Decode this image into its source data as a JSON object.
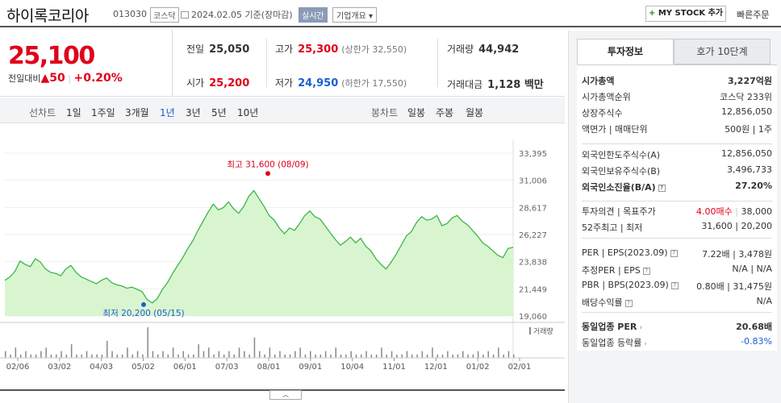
{
  "header": {
    "company": "하이록코리아",
    "code": "013030",
    "market": "코스닥",
    "date": "2024.02.05",
    "basis": "기준(장마감)",
    "realtime": "실시간",
    "overview": "기업개요",
    "mystock": "MY STOCK 추가",
    "fast_order": "빠른주문"
  },
  "quote": {
    "price": "25,100",
    "change_label": "전일대비",
    "change_value": "50",
    "change_pct": "+0.20%",
    "prev_label": "전일",
    "prev": "25,050",
    "high_label": "고가",
    "high": "25,300",
    "upper": "(상한가 32,550)",
    "volume_label": "거래량",
    "volume": "44,942",
    "open_label": "시가",
    "open": "25,200",
    "low_label": "저가",
    "low": "24,950",
    "lower": "(하한가 17,550)",
    "amount_label": "거래대금",
    "amount": "1,128 백만"
  },
  "tabs": {
    "line_label": "선차트",
    "periods": [
      "1일",
      "1주일",
      "3개월",
      "1년",
      "3년",
      "5년",
      "10년"
    ],
    "selected": "1년",
    "candle_label": "봉차트",
    "candles": [
      "일봉",
      "주봉",
      "월봉"
    ]
  },
  "chart_data": {
    "type": "area",
    "y_ticks": [
      "33,395",
      "31,006",
      "28,617",
      "26,227",
      "23,838",
      "21,449",
      "19,060"
    ],
    "ylim": [
      19060,
      33395
    ],
    "x_ticks": [
      "02/06",
      "03/02",
      "04/03",
      "05/02",
      "06/01",
      "07/03",
      "08/01",
      "09/01",
      "10/04",
      "11/01",
      "12/01",
      "01/02",
      "02/01"
    ],
    "high_label": "최고 31,600 (08/09)",
    "low_label": "최저 20,200 (05/15)",
    "high_value": 31600,
    "low_value": 20200,
    "volume_label": "거래량",
    "line_color": "#3bb54a",
    "fill_color": "#d9f5d0",
    "values": [
      22200,
      22500,
      23000,
      23900,
      23600,
      23400,
      24100,
      23800,
      23200,
      22900,
      22800,
      22600,
      23200,
      23500,
      22900,
      22500,
      22300,
      22100,
      21900,
      22200,
      22400,
      22000,
      21800,
      21700,
      21500,
      21600,
      21400,
      21200,
      20500,
      20200,
      20600,
      21400,
      22000,
      22800,
      23500,
      24200,
      25000,
      25700,
      26600,
      27400,
      28200,
      28900,
      28400,
      28600,
      29100,
      28500,
      28100,
      28700,
      29600,
      30100,
      29400,
      28700,
      27900,
      27500,
      26800,
      26300,
      26800,
      26600,
      27200,
      27900,
      28300,
      27800,
      27600,
      27000,
      26400,
      25800,
      25300,
      25600,
      26000,
      25500,
      25900,
      25200,
      24800,
      24100,
      23600,
      23200,
      23800,
      24500,
      25300,
      26100,
      26500,
      27300,
      27800,
      27500,
      27600,
      27900,
      27000,
      27200,
      27700,
      27900,
      27400,
      27100,
      26600,
      26100,
      25500,
      25200,
      24800,
      24400,
      24200,
      25000,
      25100
    ],
    "volumes": [
      2,
      1,
      3,
      1,
      2,
      1,
      1,
      2,
      3,
      1,
      1,
      2,
      1,
      4,
      1,
      1,
      2,
      1,
      1,
      1,
      5,
      2,
      1,
      1,
      3,
      1,
      2,
      1,
      9,
      2,
      1,
      2,
      1,
      3,
      1,
      2,
      1,
      1,
      4,
      2,
      3,
      1,
      2,
      1,
      2,
      1,
      3,
      2,
      1,
      6,
      2,
      1,
      3,
      1,
      2,
      1,
      1,
      2,
      3,
      1,
      2,
      1,
      1,
      2,
      1,
      3,
      1,
      1,
      2,
      1,
      1,
      2,
      1,
      1,
      3,
      1,
      2,
      1,
      1,
      2,
      1,
      1,
      2,
      1,
      3,
      1,
      1,
      2,
      1,
      1,
      2,
      1,
      1,
      2,
      1,
      2,
      1,
      3,
      1,
      2,
      1
    ]
  },
  "invest": {
    "tab_on": "투자정보",
    "tab_off": "호가 10단계",
    "rows1": [
      {
        "label": "시가총액",
        "value": "3,227억원",
        "bold": true
      },
      {
        "label": "시가총액순위",
        "value": "코스닥 233위"
      },
      {
        "label": "상장주식수",
        "value": "12,856,050"
      },
      {
        "label": "액면가 | 매매단위",
        "value": "500원 | 1주"
      }
    ],
    "rows2": [
      {
        "label": "외국인한도주식수(A)",
        "value": "12,856,050"
      },
      {
        "label": "외국인보유주식수(B)",
        "value": "3,496,733"
      },
      {
        "label": "외국인소진율(B/A)",
        "value": "27.20%",
        "bold": true
      }
    ],
    "opinion_label": "투자의견 | 목표주가",
    "opinion_value": "4.00매수",
    "target": "38,000",
    "w52_label": "52주최고 | 최저",
    "w52": "31,600 | 20,200",
    "per_label": "PER | EPS(2023.09)",
    "per": "7.22배 | 3,478원",
    "eper_label": "추정PER | EPS",
    "eper": "N/A | N/A",
    "pbr_label": "PBR | BPS(2023.09)",
    "pbr": "0.80배 | 31,475원",
    "div_label": "배당수익률",
    "div": "N/A",
    "ind_per_label": "동일업종 PER",
    "ind_per": "20.68배",
    "ind_rate_label": "동일업종 등락률",
    "ind_rate": "-0.83%"
  }
}
